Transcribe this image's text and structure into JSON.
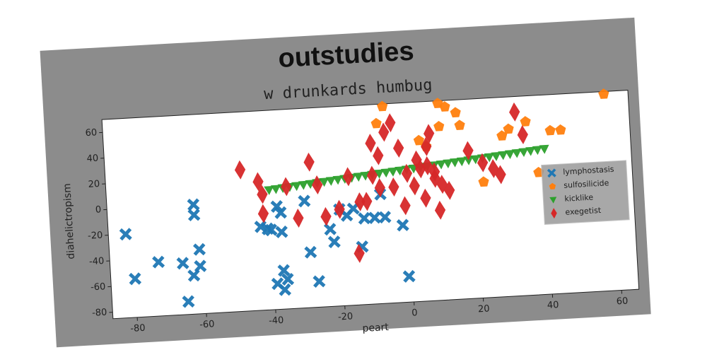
{
  "chart_data": {
    "type": "scatter",
    "title": "outstudies",
    "subtitle": "w drunkards humbug",
    "xlabel": "peart",
    "ylabel": "diahelictropism",
    "xlim": [
      -87,
      65
    ],
    "ylim": [
      -85,
      70
    ],
    "xticks": [
      -80,
      -60,
      -40,
      -20,
      0,
      20,
      40,
      60
    ],
    "yticks": [
      -80,
      -60,
      -40,
      -20,
      0,
      20,
      40,
      60
    ],
    "legend": "center right",
    "series": [
      {
        "name": "lymphostasis",
        "color": "#1f77b4",
        "marker": "x",
        "x": [
          -82,
          -80,
          -73,
          -66,
          -65,
          -63,
          -62,
          -62,
          -61,
          -61,
          -43,
          -41,
          -40,
          -39,
          -38,
          -37,
          -37,
          -37,
          -36,
          -37,
          -30,
          -29,
          -27,
          -23,
          -22,
          -20,
          -18,
          -16,
          -14,
          -13,
          -10,
          -8,
          -7,
          -2,
          -1
        ],
        "values": [
          -20,
          -55,
          -43,
          -45,
          -75,
          -55,
          0,
          -8,
          -35,
          -48,
          -20,
          -22,
          -23,
          -65,
          -5,
          -10,
          -25,
          -55,
          -62,
          -70,
          -2,
          -42,
          -65,
          -25,
          -35,
          -10,
          -15,
          -10,
          -40,
          -18,
          -18,
          0,
          -18,
          -25,
          -65
        ]
      },
      {
        "name": "sulfosilicide",
        "color": "#ff7f0e",
        "marker": "pentagon",
        "x": [
          -8,
          -6,
          4,
          6,
          10,
          10,
          12,
          15,
          16,
          22,
          28,
          30,
          35,
          38,
          42,
          45,
          58
        ],
        "values": [
          55,
          68,
          40,
          35,
          68,
          50,
          65,
          60,
          50,
          5,
          40,
          45,
          50,
          10,
          42,
          42,
          68
        ]
      },
      {
        "name": "kicklike",
        "color": "#2ca02c",
        "marker": "triangle_down",
        "x": [
          -40,
          -38,
          -36,
          -34,
          -32,
          -30,
          -28,
          -26,
          -24,
          -22,
          -20,
          -18,
          -16,
          -14,
          -12,
          -10,
          -8,
          -6,
          -4,
          -2,
          0,
          2,
          4,
          6,
          8,
          10,
          12,
          14,
          16,
          18,
          20,
          22,
          24,
          26,
          28,
          30,
          32,
          34,
          36,
          38,
          40
        ],
        "values": [
          8,
          8.5,
          9,
          9.5,
          10,
          10.5,
          11,
          11.5,
          12,
          12.5,
          13,
          13.5,
          14,
          14.5,
          15,
          15.5,
          16,
          16.5,
          17,
          17.5,
          18,
          18.5,
          19,
          19.5,
          20,
          20.5,
          21,
          21.5,
          22,
          22.5,
          23,
          23.5,
          24,
          24.5,
          25,
          25.5,
          26,
          26.5,
          27,
          27.5,
          28
        ]
      },
      {
        "name": "exegetist",
        "color": "#d62728",
        "marker": "diamond",
        "x": [
          -48,
          -43,
          -42,
          -42,
          -35,
          -32,
          -28,
          -26,
          -24,
          -20,
          -17,
          -15,
          -14,
          -12,
          -10,
          -10,
          -8,
          -8,
          -6,
          -4,
          -4,
          -2,
          -1,
          0,
          2,
          3,
          4,
          5,
          6,
          6,
          7,
          8,
          8,
          9,
          10,
          12,
          18,
          22,
          25,
          27,
          32,
          34
        ],
        "values": [
          25,
          15,
          5,
          -10,
          10,
          -15,
          28,
          10,
          -15,
          -10,
          15,
          -45,
          -5,
          -5,
          15,
          40,
          30,
          5,
          48,
          55,
          5,
          35,
          -10,
          15,
          5,
          25,
          18,
          -5,
          20,
          35,
          45,
          10,
          15,
          -15,
          5,
          0,
          30,
          20,
          15,
          10,
          58,
          40
        ]
      }
    ]
  }
}
